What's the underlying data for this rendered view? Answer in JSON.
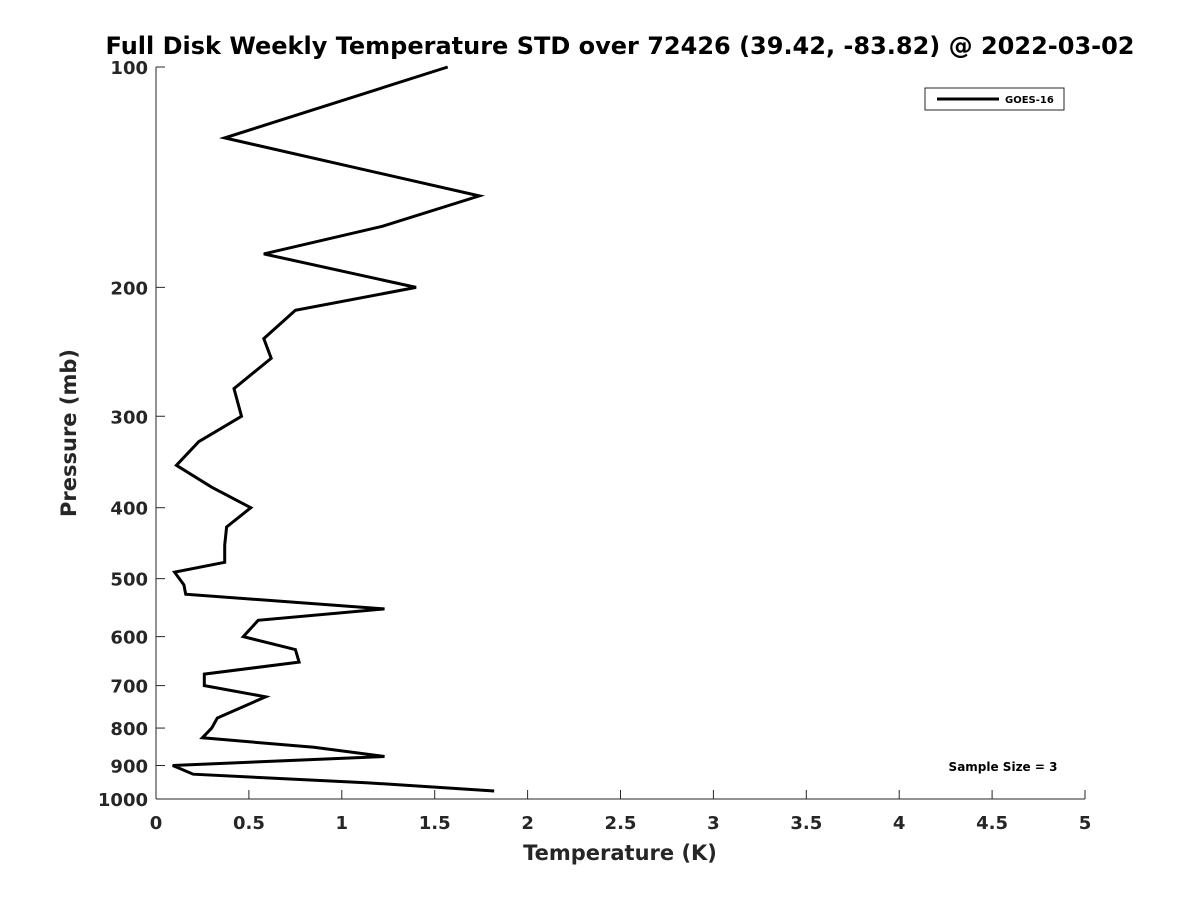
{
  "chart_data": {
    "type": "line",
    "title": "Full Disk Weekly Temperature STD over 72426 (39.42, -83.82) @ 2022-03-02",
    "xlabel": "Temperature (K)",
    "ylabel": "Pressure (mb)",
    "xlim": [
      0,
      5
    ],
    "ylim": [
      100,
      1000
    ],
    "y_scale": "log",
    "y_direction": "reversed",
    "grid": false,
    "legend_position": "top-right",
    "xticks": [
      0,
      0.5,
      1,
      1.5,
      2,
      2.5,
      3,
      3.5,
      4,
      4.5,
      5
    ],
    "xtick_labels": [
      "0",
      "0.5",
      "1",
      "1.5",
      "2",
      "2.5",
      "3",
      "3.5",
      "4",
      "4.5",
      "5"
    ],
    "yticks": [
      100,
      200,
      300,
      400,
      500,
      600,
      700,
      800,
      900,
      1000
    ],
    "ytick_labels": [
      "100",
      "200",
      "300",
      "400",
      "500",
      "600",
      "700",
      "800",
      "900",
      "1000"
    ],
    "annotation": "Sample Size = 3",
    "series": [
      {
        "name": "GOES-16",
        "color": "#000000",
        "points": [
          {
            "t": 1.57,
            "p": 100
          },
          {
            "t": 0.37,
            "p": 125
          },
          {
            "t": 1.74,
            "p": 150
          },
          {
            "t": 1.22,
            "p": 165
          },
          {
            "t": 0.58,
            "p": 180
          },
          {
            "t": 1.4,
            "p": 200
          },
          {
            "t": 0.75,
            "p": 215
          },
          {
            "t": 0.58,
            "p": 235
          },
          {
            "t": 0.62,
            "p": 250
          },
          {
            "t": 0.42,
            "p": 275
          },
          {
            "t": 0.46,
            "p": 300
          },
          {
            "t": 0.23,
            "p": 325
          },
          {
            "t": 0.11,
            "p": 350
          },
          {
            "t": 0.3,
            "p": 375
          },
          {
            "t": 0.51,
            "p": 400
          },
          {
            "t": 0.38,
            "p": 425
          },
          {
            "t": 0.37,
            "p": 450
          },
          {
            "t": 0.37,
            "p": 475
          },
          {
            "t": 0.1,
            "p": 490
          },
          {
            "t": 0.15,
            "p": 510
          },
          {
            "t": 0.16,
            "p": 525
          },
          {
            "t": 1.23,
            "p": 550
          },
          {
            "t": 0.55,
            "p": 570
          },
          {
            "t": 0.47,
            "p": 600
          },
          {
            "t": 0.75,
            "p": 625
          },
          {
            "t": 0.77,
            "p": 650
          },
          {
            "t": 0.26,
            "p": 675
          },
          {
            "t": 0.26,
            "p": 700
          },
          {
            "t": 0.59,
            "p": 725
          },
          {
            "t": 0.33,
            "p": 775
          },
          {
            "t": 0.3,
            "p": 800
          },
          {
            "t": 0.25,
            "p": 825
          },
          {
            "t": 0.85,
            "p": 850
          },
          {
            "t": 1.23,
            "p": 875
          },
          {
            "t": 0.09,
            "p": 900
          },
          {
            "t": 0.2,
            "p": 925
          },
          {
            "t": 1.13,
            "p": 950
          },
          {
            "t": 1.82,
            "p": 975
          }
        ]
      }
    ]
  }
}
